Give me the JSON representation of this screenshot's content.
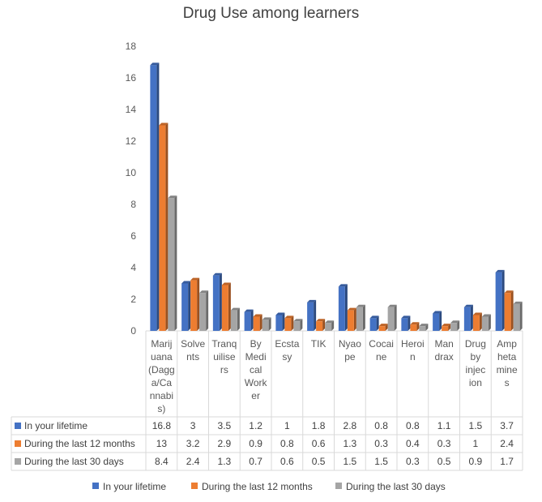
{
  "chart_data": {
    "type": "bar",
    "title": "Drug Use among learners",
    "categories": [
      [
        "Marij",
        "uana",
        "(Dagg",
        "a/Ca",
        "nnabi",
        "s)"
      ],
      [
        "Solve",
        "nts"
      ],
      [
        "Tranq",
        "uilise",
        "rs"
      ],
      [
        "By",
        "Medi",
        "cal",
        "Work",
        "er"
      ],
      [
        "Ecsta",
        "sy"
      ],
      [
        "TIK"
      ],
      [
        "Nyao",
        "pe"
      ],
      [
        "Cocai",
        "ne"
      ],
      [
        "Heroi",
        "n"
      ],
      [
        "Man",
        "drax"
      ],
      [
        "Drug",
        "by",
        "injec",
        "ion"
      ],
      [
        "Amp",
        "heta",
        "mine",
        "s"
      ]
    ],
    "series": [
      {
        "name": "In your lifetime",
        "color": "#4472C4",
        "values": [
          16.8,
          3,
          3.5,
          1.2,
          1,
          1.8,
          2.8,
          0.8,
          0.8,
          1.1,
          1.5,
          3.7
        ]
      },
      {
        "name": "During the last 12 months",
        "color": "#ED7D31",
        "values": [
          13,
          3.2,
          2.9,
          0.9,
          0.8,
          0.6,
          1.3,
          0.3,
          0.4,
          0.3,
          1,
          2.4
        ]
      },
      {
        "name": "During the last 30 days",
        "color": "#A5A5A5",
        "values": [
          8.4,
          2.4,
          1.3,
          0.7,
          0.6,
          0.5,
          1.5,
          1.5,
          0.3,
          0.5,
          0.9,
          1.7
        ]
      }
    ],
    "ylim": [
      0,
      18
    ],
    "yticks": [
      0,
      2,
      4,
      6,
      8,
      10,
      12,
      14,
      16,
      18
    ],
    "xlabel": "",
    "ylabel": "",
    "grid": false,
    "legend": "bottom",
    "data_table": true
  }
}
